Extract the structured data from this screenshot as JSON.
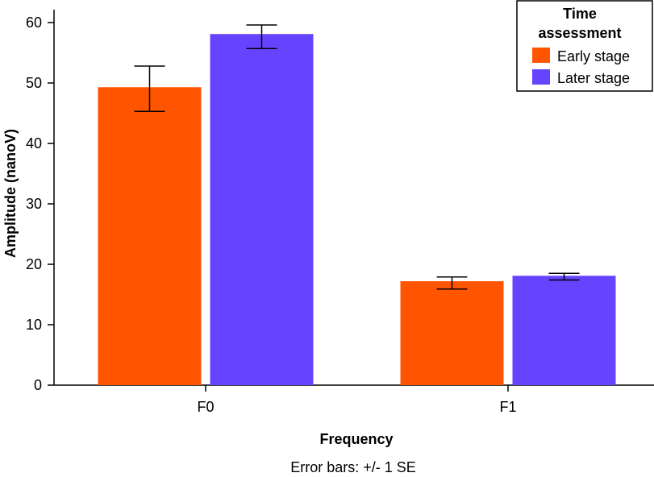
{
  "chart_data": {
    "type": "bar",
    "title": "",
    "xlabel": "Frequency",
    "ylabel": "Amplitude (nanoV)",
    "note": "Error bars: +/- 1 SE",
    "categories": [
      "F0",
      "F1"
    ],
    "ylim": [
      0,
      60
    ],
    "yticks": [
      0,
      10,
      20,
      30,
      40,
      50,
      60
    ],
    "legend": {
      "title_line1": "Time",
      "title_line2": "assessment",
      "position": "top-right"
    },
    "series": [
      {
        "name": "Early stage",
        "color": "#ff5500",
        "values": [
          49.3,
          17.2
        ],
        "err_low": [
          45.3,
          15.9
        ],
        "err_high": [
          52.8,
          17.9
        ]
      },
      {
        "name": "Later stage",
        "color": "#6644ff",
        "values": [
          58.1,
          18.1
        ],
        "err_low": [
          55.7,
          17.4
        ],
        "err_high": [
          59.6,
          18.5
        ]
      }
    ]
  }
}
